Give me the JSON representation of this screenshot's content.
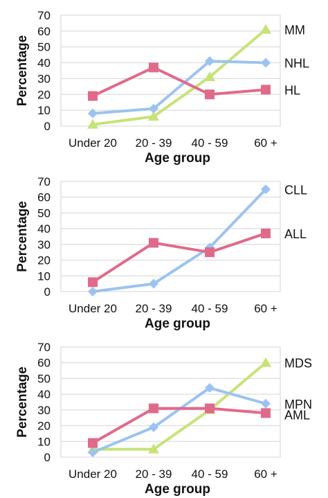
{
  "chart_data": [
    {
      "type": "line",
      "xlabel": "Age group",
      "ylabel": "Percentage",
      "ylim": [
        0,
        70
      ],
      "yticks": [
        "0",
        "10",
        "20",
        "30",
        "40",
        "50",
        "60",
        "70"
      ],
      "categories": [
        "Under 20",
        "20 - 39",
        "40 - 59",
        "60 +"
      ],
      "grid": true,
      "legend": "end-of-line labels",
      "series": [
        {
          "name": "MM",
          "color": "#c6e377",
          "marker": "triangle",
          "values": [
            1,
            6,
            31,
            61
          ]
        },
        {
          "name": "NHL",
          "color": "#9cc3ef",
          "marker": "diamond",
          "values": [
            8,
            11,
            41,
            40
          ]
        },
        {
          "name": "HL",
          "color": "#e06a8a",
          "marker": "square",
          "values": [
            19,
            37,
            20,
            23
          ]
        }
      ]
    },
    {
      "type": "line",
      "xlabel": "Age group",
      "ylabel": "Percentage",
      "ylim": [
        0,
        70
      ],
      "yticks": [
        "0",
        "10",
        "20",
        "30",
        "40",
        "50",
        "60",
        "70"
      ],
      "categories": [
        "Under 20",
        "20 - 39",
        "40 - 59",
        "60 +"
      ],
      "grid": true,
      "legend": "end-of-line labels",
      "series": [
        {
          "name": "CLL",
          "color": "#9cc3ef",
          "marker": "diamond",
          "values": [
            0,
            5,
            28,
            65
          ]
        },
        {
          "name": "ALL",
          "color": "#e06a8a",
          "marker": "square",
          "values": [
            6,
            31,
            25,
            37
          ]
        }
      ]
    },
    {
      "type": "line",
      "xlabel": "Age group",
      "ylabel": "Percentage",
      "ylim": [
        0,
        70
      ],
      "yticks": [
        "0",
        "10",
        "20",
        "30",
        "40",
        "50",
        "60",
        "70"
      ],
      "categories": [
        "Under 20",
        "20 - 39",
        "40 - 59",
        "60 +"
      ],
      "grid": true,
      "legend": "end-of-line labels",
      "series": [
        {
          "name": "MDS",
          "color": "#c6e377",
          "marker": "triangle",
          "values": [
            5,
            5,
            30,
            60
          ]
        },
        {
          "name": "MPN",
          "color": "#9cc3ef",
          "marker": "diamond",
          "values": [
            3,
            19,
            44,
            34
          ]
        },
        {
          "name": "AML",
          "color": "#e06a8a",
          "marker": "square",
          "values": [
            9,
            31,
            31,
            28
          ]
        }
      ]
    }
  ]
}
